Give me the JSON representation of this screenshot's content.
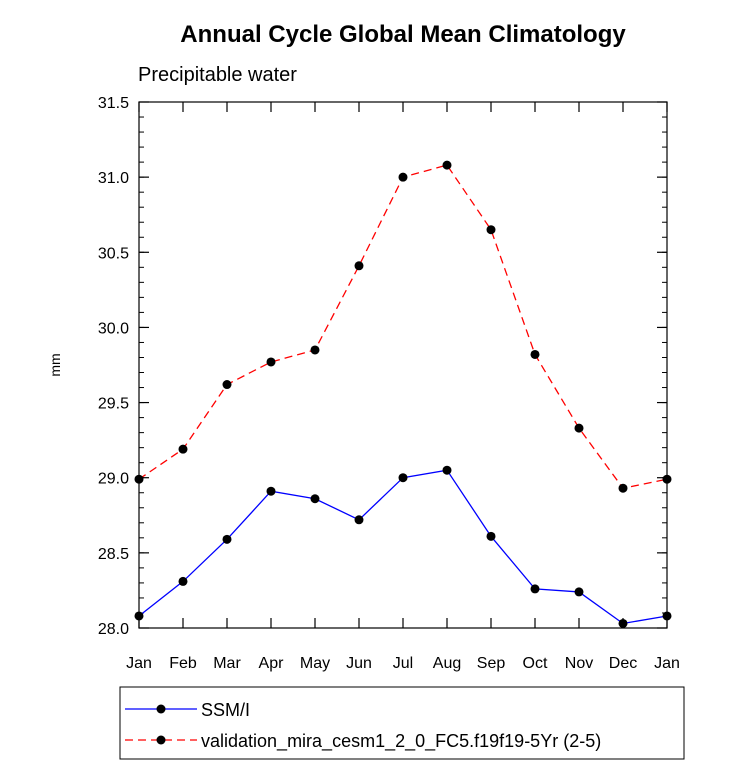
{
  "chart_data": {
    "type": "line",
    "title": "Annual Cycle Global Mean Climatology",
    "subtitle": "Precipitable water",
    "xlabel": "",
    "ylabel": "mm",
    "categories": [
      "Jan",
      "Feb",
      "Mar",
      "Apr",
      "May",
      "Jun",
      "Jul",
      "Aug",
      "Sep",
      "Oct",
      "Nov",
      "Dec",
      "Jan"
    ],
    "ylim": [
      28.0,
      31.5
    ],
    "yticks": [
      "28.0",
      "28.5",
      "29.0",
      "29.5",
      "30.0",
      "30.5",
      "31.0",
      "31.5"
    ],
    "yticks_values": [
      28.0,
      28.5,
      29.0,
      29.5,
      30.0,
      30.5,
      31.0,
      31.5
    ],
    "grid": false,
    "legend_position": "bottom",
    "series": [
      {
        "name": "SSM/I",
        "color": "#0000ff",
        "dash": "solid",
        "values": [
          28.08,
          28.31,
          28.59,
          28.91,
          28.86,
          28.72,
          29.0,
          29.05,
          28.61,
          28.26,
          28.24,
          28.03,
          28.08
        ]
      },
      {
        "name": "validation_mira_cesm1_2_0_FC5.f19f19-5Yr (2-5)",
        "color": "#ff0000",
        "dash": "dashed",
        "values": [
          28.99,
          29.19,
          29.62,
          29.77,
          29.85,
          30.41,
          31.0,
          31.08,
          30.65,
          29.82,
          29.33,
          28.93,
          28.99
        ]
      }
    ]
  }
}
